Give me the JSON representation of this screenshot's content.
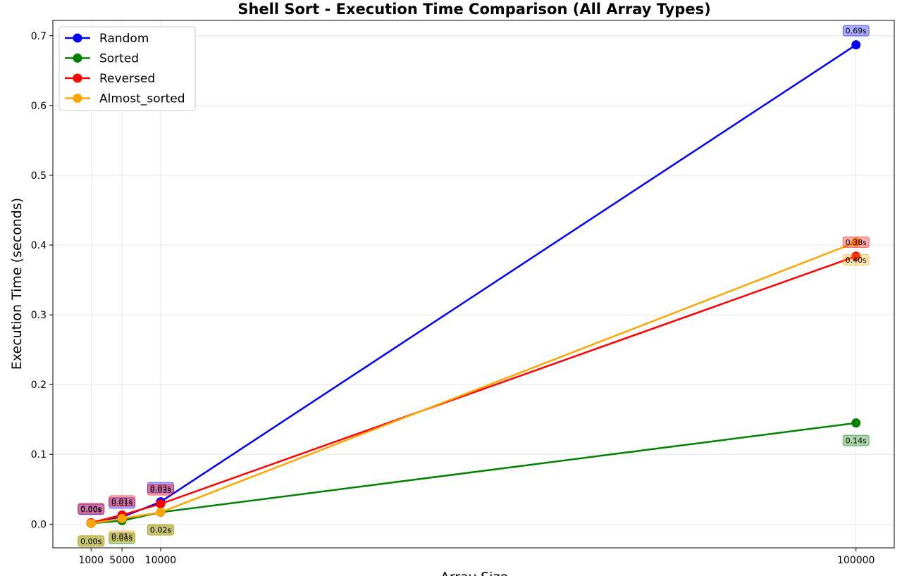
{
  "chart_data": {
    "type": "line",
    "title": "Shell Sort - Execution Time Comparison (All Array Types)",
    "xlabel": "Array Size",
    "ylabel": "Execution Time (seconds)",
    "x": [
      1000,
      5000,
      10000,
      100000
    ],
    "x_tick_labels": [
      "1000",
      "5000",
      "10000",
      "100000"
    ],
    "y_ticks": [
      0.0,
      0.1,
      0.2,
      0.3,
      0.4,
      0.5,
      0.6,
      0.7
    ],
    "y_tick_labels": [
      "0.0",
      "0.1",
      "0.2",
      "0.3",
      "0.4",
      "0.5",
      "0.6",
      "0.7"
    ],
    "xlim": [
      -3950,
      104950
    ],
    "ylim": [
      -0.034,
      0.722
    ],
    "grid": true,
    "legend_position": "top-left",
    "series": [
      {
        "name": "Random",
        "color": "#0000ff",
        "values": [
          0.001,
          0.01,
          0.032,
          0.687
        ],
        "labels": [
          "0.00s",
          "0.01s",
          "0.03s",
          "0.69s"
        ],
        "label_side": "above"
      },
      {
        "name": "Sorted",
        "color": "#008000",
        "values": [
          0.001,
          0.005,
          0.017,
          0.145
        ],
        "labels": [
          "0.00s",
          "0.00s",
          "0.02s",
          "0.14s"
        ],
        "label_side": "below"
      },
      {
        "name": "Reversed",
        "color": "#ff0000",
        "values": [
          0.002,
          0.013,
          0.029,
          0.384
        ],
        "labels": [
          "0.00s",
          "0.01s",
          "0.03s",
          "0.38s"
        ],
        "label_side": "above"
      },
      {
        "name": "Almost_sorted",
        "color": "#ffa500",
        "values": [
          0.001,
          0.008,
          0.017,
          0.404
        ],
        "labels": [
          "0.00s",
          "0.01s",
          "0.02s",
          "0.40s"
        ],
        "label_side": "below"
      }
    ]
  }
}
